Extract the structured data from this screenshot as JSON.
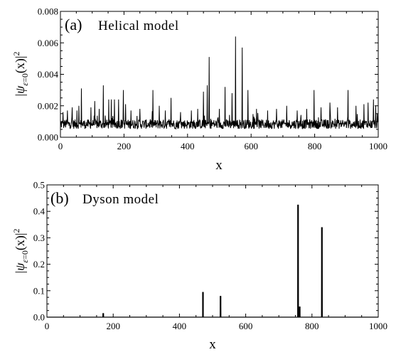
{
  "chart_data": [
    {
      "type": "line",
      "panel": "(a)",
      "title": "Helical model",
      "xlabel": "x",
      "ylabel": "|ψ_{ε=0}(x)|²",
      "xlim": [
        0,
        1000
      ],
      "ylim": [
        0,
        0.008
      ],
      "xticks": [
        "0",
        "200",
        "400",
        "600",
        "800",
        "1000"
      ],
      "yticks": [
        "0.000",
        "0.002",
        "0.004",
        "0.006",
        "0.008"
      ],
      "baseline": 0.0008,
      "noise_amplitude": 0.0003,
      "peaks": [
        {
          "x": 8,
          "y": 0.0016
        },
        {
          "x": 22,
          "y": 0.0017
        },
        {
          "x": 37,
          "y": 0.0019
        },
        {
          "x": 52,
          "y": 0.0017
        },
        {
          "x": 58,
          "y": 0.002
        },
        {
          "x": 66,
          "y": 0.0031
        },
        {
          "x": 96,
          "y": 0.0019
        },
        {
          "x": 108,
          "y": 0.0023
        },
        {
          "x": 122,
          "y": 0.0018
        },
        {
          "x": 135,
          "y": 0.0033
        },
        {
          "x": 152,
          "y": 0.0024
        },
        {
          "x": 160,
          "y": 0.0024
        },
        {
          "x": 170,
          "y": 0.0024
        },
        {
          "x": 183,
          "y": 0.0024
        },
        {
          "x": 198,
          "y": 0.003
        },
        {
          "x": 205,
          "y": 0.0021
        },
        {
          "x": 222,
          "y": 0.0017
        },
        {
          "x": 250,
          "y": 0.0018
        },
        {
          "x": 291,
          "y": 0.003
        },
        {
          "x": 311,
          "y": 0.002
        },
        {
          "x": 330,
          "y": 0.0017
        },
        {
          "x": 348,
          "y": 0.0025
        },
        {
          "x": 378,
          "y": 0.0016
        },
        {
          "x": 412,
          "y": 0.0017
        },
        {
          "x": 432,
          "y": 0.0018
        },
        {
          "x": 450,
          "y": 0.0029
        },
        {
          "x": 462,
          "y": 0.0033
        },
        {
          "x": 468,
          "y": 0.0051
        },
        {
          "x": 500,
          "y": 0.0018
        },
        {
          "x": 518,
          "y": 0.0032
        },
        {
          "x": 540,
          "y": 0.0028
        },
        {
          "x": 551,
          "y": 0.0064
        },
        {
          "x": 572,
          "y": 0.0057
        },
        {
          "x": 590,
          "y": 0.003
        },
        {
          "x": 617,
          "y": 0.0018
        },
        {
          "x": 652,
          "y": 0.0017
        },
        {
          "x": 680,
          "y": 0.0018
        },
        {
          "x": 712,
          "y": 0.002
        },
        {
          "x": 745,
          "y": 0.0017
        },
        {
          "x": 775,
          "y": 0.0018
        },
        {
          "x": 798,
          "y": 0.003
        },
        {
          "x": 820,
          "y": 0.0019
        },
        {
          "x": 848,
          "y": 0.0022
        },
        {
          "x": 872,
          "y": 0.0019
        },
        {
          "x": 905,
          "y": 0.003
        },
        {
          "x": 930,
          "y": 0.002
        },
        {
          "x": 955,
          "y": 0.0021
        },
        {
          "x": 968,
          "y": 0.0022
        },
        {
          "x": 985,
          "y": 0.0024
        },
        {
          "x": 992,
          "y": 0.002
        },
        {
          "x": 997,
          "y": 0.0015
        }
      ]
    },
    {
      "type": "line",
      "panel": "(b)",
      "title": "Dyson model",
      "xlabel": "x",
      "ylabel": "|ψ_{ε=0}(x)|²",
      "xlim": [
        0,
        1000
      ],
      "ylim": [
        0,
        0.5
      ],
      "xticks": [
        "0",
        "200",
        "400",
        "600",
        "800",
        "1000"
      ],
      "yticks": [
        "0.0",
        "0.1",
        "0.2",
        "0.3",
        "0.4",
        "0.5"
      ],
      "baseline": 0.0,
      "peaks": [
        {
          "x": 170,
          "y": 0.015
        },
        {
          "x": 471,
          "y": 0.095
        },
        {
          "x": 524,
          "y": 0.08
        },
        {
          "x": 758,
          "y": 0.425
        },
        {
          "x": 763,
          "y": 0.04
        },
        {
          "x": 830,
          "y": 0.34
        }
      ]
    }
  ]
}
